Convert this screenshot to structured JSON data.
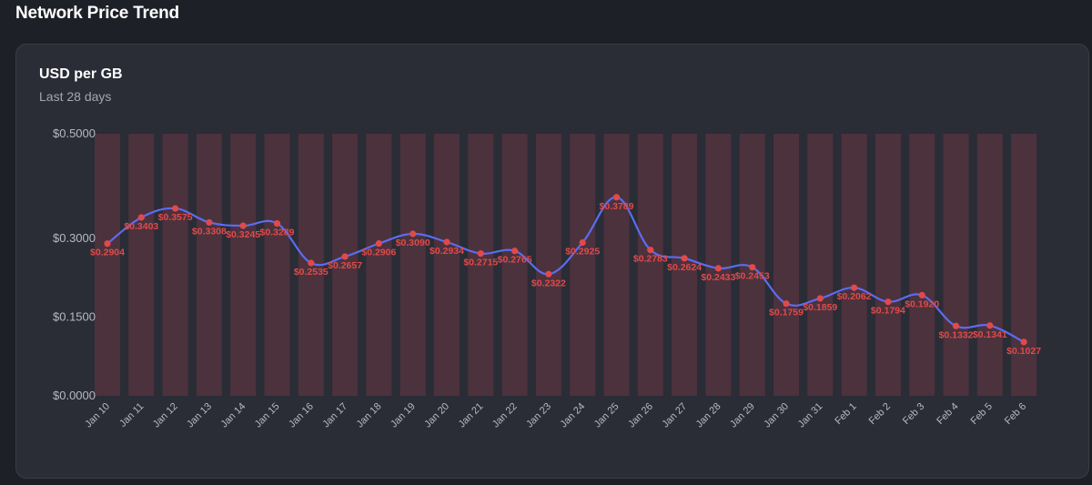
{
  "page": {
    "title": "Network Price Trend"
  },
  "card": {
    "title": "USD per GB",
    "subtitle": "Last 28 days"
  },
  "colors": {
    "line": "#5b6cf0",
    "point": "#e04a4a",
    "bar": "#4c323d",
    "label": "#e04a4a"
  },
  "chart_data": {
    "type": "line",
    "title": "USD per GB",
    "subtitle": "Last 28 days",
    "xlabel": "",
    "ylabel": "",
    "ylim": [
      0,
      0.5
    ],
    "yticks": [
      0,
      0.15,
      0.3,
      0.5
    ],
    "ytick_labels": [
      "$0.0000",
      "$0.1500",
      "$0.3000",
      "$0.5000"
    ],
    "categories": [
      "Jan 10",
      "Jan 11",
      "Jan 12",
      "Jan 13",
      "Jan 14",
      "Jan 15",
      "Jan 16",
      "Jan 17",
      "Jan 18",
      "Jan 19",
      "Jan 20",
      "Jan 21",
      "Jan 22",
      "Jan 23",
      "Jan 24",
      "Jan 25",
      "Jan 26",
      "Jan 27",
      "Jan 28",
      "Jan 29",
      "Jan 30",
      "Jan 31",
      "Feb 1",
      "Feb 2",
      "Feb 3",
      "Feb 4",
      "Feb 5",
      "Feb 6"
    ],
    "series": [
      {
        "name": "USD per GB",
        "values": [
          0.2904,
          0.3403,
          0.3575,
          0.3308,
          0.3245,
          0.3289,
          0.2535,
          0.2657,
          0.2906,
          0.309,
          0.2934,
          0.2715,
          0.2765,
          0.2322,
          0.2925,
          0.3789,
          0.2783,
          0.2624,
          0.2433,
          0.2453,
          0.1759,
          0.1859,
          0.2062,
          0.1794,
          0.192,
          0.1332,
          0.1341,
          0.1027
        ],
        "labels": [
          "$0.2904",
          "$0.3403",
          "$0.3575",
          "$0.3308",
          "$0.3245",
          "$0.3289",
          "$0.2535",
          "$0.2657",
          "$0.2906",
          "$0.3090",
          "$0.2934",
          "$0.2715",
          "$0.2765",
          "$0.2322",
          "$0.2925",
          "$0.3789",
          "$0.2783",
          "$0.2624",
          "$0.2433",
          "$0.2453",
          "$0.1759",
          "$0.1859",
          "$0.2062",
          "$0.1794",
          "$0.1920",
          "$0.1332",
          "$0.1341",
          "$0.1027"
        ]
      }
    ],
    "background_bars": {
      "value": 0.5
    },
    "legend": "none",
    "grid": false
  }
}
